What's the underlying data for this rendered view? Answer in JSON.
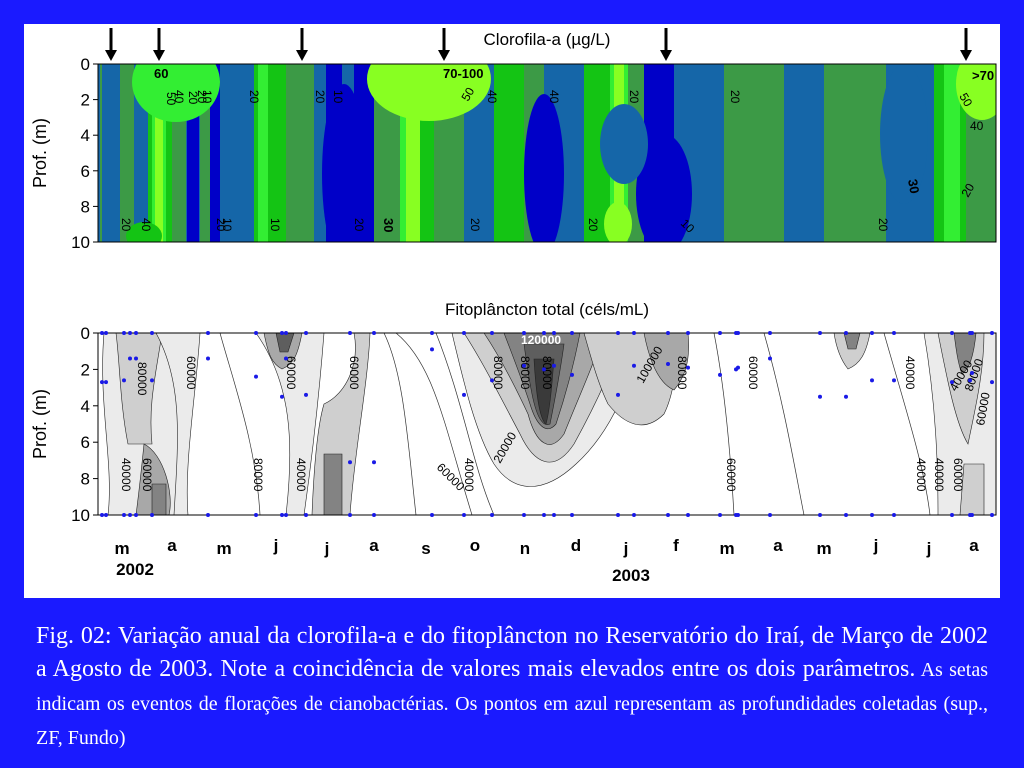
{
  "colors": {
    "background": "#1a1aff",
    "panel": "#ffffff",
    "data_point": "#1a1ae6",
    "chl_levels": [
      "#0000c8",
      "#1566a8",
      "#3c9a46",
      "#14c414",
      "#33ee33",
      "#88ff22"
    ],
    "fito_levels": [
      "#ffffff",
      "#ebebeb",
      "#cfcfcf",
      "#a8a8a8",
      "#838383",
      "#5e5e5e",
      "#3a3a3a"
    ]
  },
  "months": [
    "m",
    "a",
    "m",
    "j",
    "j",
    "a",
    "s",
    "o",
    "n",
    "d",
    "j",
    "f",
    "m",
    "a",
    "m",
    "j",
    "j",
    "a"
  ],
  "years": [
    "2002",
    "2003"
  ],
  "chart_data": [
    {
      "type": "heatmap",
      "title": "Clorofila-a (µg/L)",
      "ylabel": "Prof. (m)",
      "yticks": [
        "0",
        "2",
        "4",
        "6",
        "8",
        "10"
      ],
      "ylim": [
        10,
        0
      ],
      "x_period": "Março 2002 – Agosto 2003",
      "arrows": [
        "m",
        "a",
        "j",
        "o",
        "f",
        "a"
      ],
      "contour_labels": [
        "60",
        "50",
        "40",
        "20",
        "20",
        "10",
        "20",
        "20",
        "10",
        "70-100",
        "50",
        "40",
        "40",
        "20",
        "20",
        ">70",
        "50",
        "40",
        "30",
        "20",
        "20",
        "40",
        "20",
        "10",
        "10",
        "20",
        "30",
        "20",
        "20",
        "10",
        "20"
      ]
    },
    {
      "type": "heatmap",
      "title": "Fitoplâncton total (céls/mL)",
      "ylabel": "Prof. (m)",
      "yticks": [
        "0",
        "2",
        "4",
        "6",
        "8",
        "10"
      ],
      "ylim": [
        10,
        0
      ],
      "x_period": "Março 2002 – Agosto 2003",
      "contour_labels": [
        "80000",
        "60000",
        "60000",
        "60000",
        "120000",
        "80000",
        "80000",
        "80000",
        "100000",
        "80000",
        "60000",
        "40000",
        "40000",
        "80000",
        "60000",
        "40000",
        "60000",
        "80000",
        "40000",
        "60000",
        "40000",
        "20000",
        "60000",
        "40000",
        "40000",
        "60000"
      ]
    }
  ],
  "caption": {
    "main": "Fig. 02: Variação anual da clorofila-a e do fitoplâncton no Reservatório do Iraí, de Março de 2002 a Agosto de 2003. Note a coincidência de valores mais elevados entre os dois parâmetros.",
    "small": " As setas indicam os eventos de florações de cianobactérias. Os pontos em azul representam as profundidades coletadas (sup., ZF, Fundo)"
  }
}
